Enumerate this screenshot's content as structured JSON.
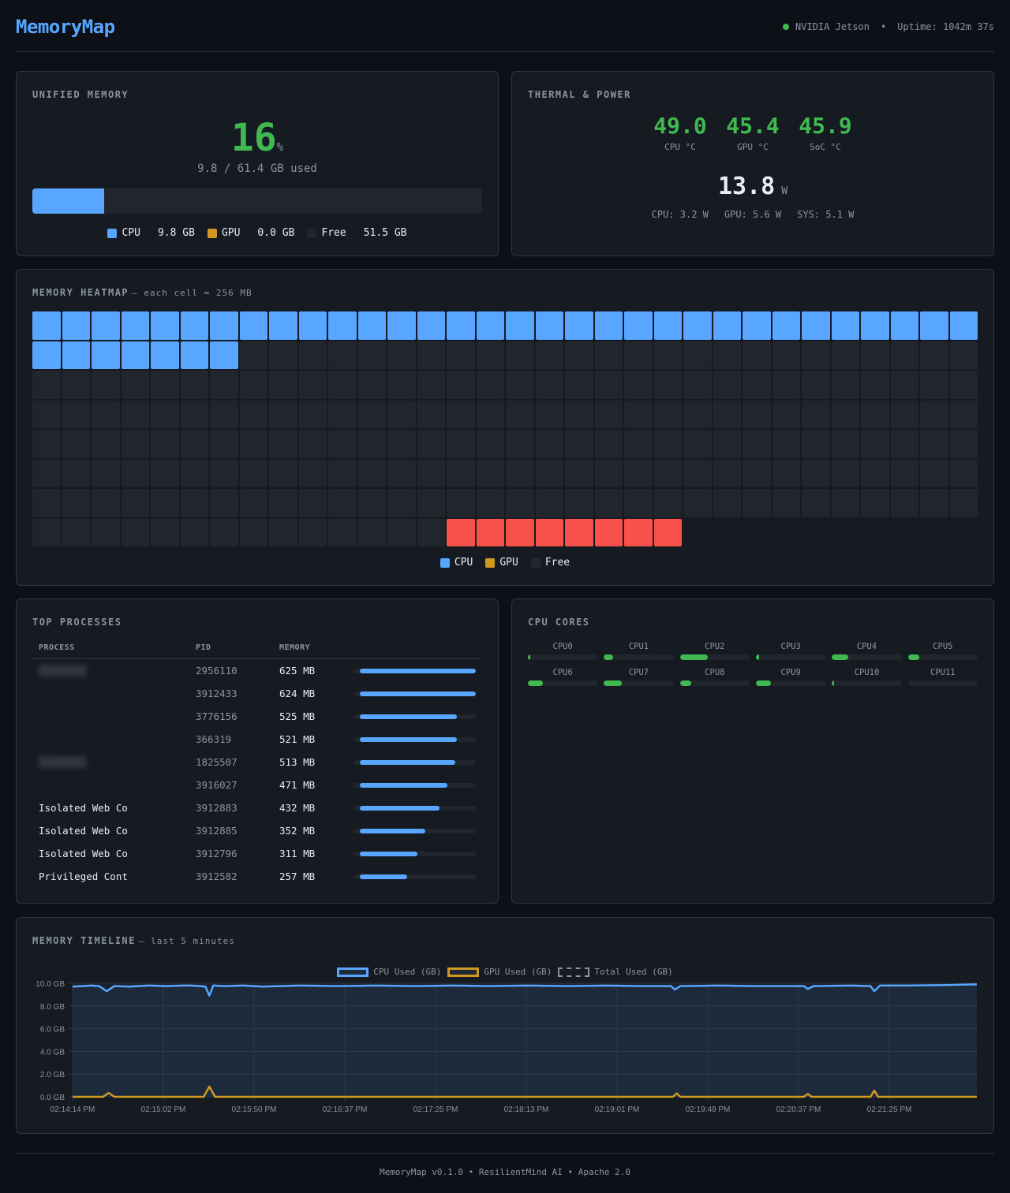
{
  "header": {
    "title": "MemoryMap",
    "device": "NVIDIA Jetson",
    "separator": "•",
    "uptime": "Uptime: 1042m 37s",
    "status_color": "#3fb950"
  },
  "colors": {
    "cpu": "#58a6ff",
    "gpu": "#d29922",
    "free": "#21262d",
    "reserved": "#f85149",
    "ok": "#3fb950"
  },
  "unified_memory": {
    "title": "UNIFIED MEMORY",
    "percent": "16",
    "percent_sign": "%",
    "used_text": "9.8 / 61.4 GB used",
    "bar_cpu_pct": 16,
    "legend": [
      {
        "label": "CPU",
        "value": "9.8 GB",
        "color": "#58a6ff"
      },
      {
        "label": "GPU",
        "value": "0.0 GB",
        "color": "#d29922"
      },
      {
        "label": "Free",
        "value": "51.5 GB",
        "color": "#21262d"
      }
    ]
  },
  "thermal": {
    "title": "THERMAL & POWER",
    "temps": [
      {
        "value": "49.0",
        "label": "CPU °C"
      },
      {
        "value": "45.4",
        "label": "GPU °C"
      },
      {
        "value": "45.9",
        "label": "SoC °C"
      }
    ],
    "power_total": "13.8",
    "power_unit": "W",
    "power_breakdown": [
      "CPU: 3.2 W",
      "GPU: 5.6 W",
      "SYS: 5.1 W"
    ]
  },
  "heatmap": {
    "title": "MEMORY HEATMAP",
    "subtitle": "— each cell = 256 MB",
    "columns": 32,
    "rows": [
      {
        "cpu": 32,
        "gpu": 0,
        "free": 0,
        "reserved": 0,
        "empty": 0
      },
      {
        "cpu": 7,
        "gpu": 0,
        "free": 25,
        "reserved": 0,
        "empty": 0
      },
      {
        "cpu": 0,
        "gpu": 0,
        "free": 32,
        "reserved": 0,
        "empty": 0
      },
      {
        "cpu": 0,
        "gpu": 0,
        "free": 32,
        "reserved": 0,
        "empty": 0
      },
      {
        "cpu": 0,
        "gpu": 0,
        "free": 32,
        "reserved": 0,
        "empty": 0
      },
      {
        "cpu": 0,
        "gpu": 0,
        "free": 32,
        "reserved": 0,
        "empty": 0
      },
      {
        "cpu": 0,
        "gpu": 0,
        "free": 32,
        "reserved": 0,
        "empty": 0
      },
      {
        "cpu": 0,
        "gpu": 0,
        "free": 14,
        "reserved": 8,
        "empty": 10
      }
    ],
    "legend": [
      {
        "label": "CPU",
        "color": "#58a6ff"
      },
      {
        "label": "GPU",
        "color": "#d29922"
      },
      {
        "label": "Free",
        "color": "#21262d"
      }
    ]
  },
  "processes": {
    "title": "TOP PROCESSES",
    "columns": [
      "PROCESS",
      "PID",
      "MEMORY",
      ""
    ],
    "rows": [
      {
        "name": "",
        "blurred": true,
        "pid": "2956110",
        "memory": "625 MB",
        "pct": 100
      },
      {
        "name": "",
        "blurred": false,
        "pid": "3912433",
        "memory": "624 MB",
        "pct": 99.8
      },
      {
        "name": "",
        "blurred": false,
        "pid": "3776156",
        "memory": "525 MB",
        "pct": 84
      },
      {
        "name": "",
        "blurred": false,
        "pid": "366319",
        "memory": "521 MB",
        "pct": 83.4
      },
      {
        "name": "",
        "blurred": true,
        "pid": "1825507",
        "memory": "513 MB",
        "pct": 82
      },
      {
        "name": "",
        "blurred": false,
        "pid": "3916027",
        "memory": "471 MB",
        "pct": 75.4
      },
      {
        "name": "Isolated Web Co",
        "blurred": false,
        "pid": "3912883",
        "memory": "432 MB",
        "pct": 69
      },
      {
        "name": "Isolated Web Co",
        "blurred": false,
        "pid": "3912885",
        "memory": "352 MB",
        "pct": 56.3
      },
      {
        "name": "Isolated Web Co",
        "blurred": false,
        "pid": "3912796",
        "memory": "311 MB",
        "pct": 49.8
      },
      {
        "name": "Privileged Cont",
        "blurred": false,
        "pid": "3912582",
        "memory": "257 MB",
        "pct": 41.1
      }
    ]
  },
  "cpu_cores": {
    "title": "CPU CORES",
    "cores": [
      {
        "label": "CPU0",
        "pct": 3
      },
      {
        "label": "CPU1",
        "pct": 13
      },
      {
        "label": "CPU2",
        "pct": 40
      },
      {
        "label": "CPU3",
        "pct": 4
      },
      {
        "label": "CPU4",
        "pct": 23
      },
      {
        "label": "CPU5",
        "pct": 16
      },
      {
        "label": "CPU6",
        "pct": 21
      },
      {
        "label": "CPU7",
        "pct": 26
      },
      {
        "label": "CPU8",
        "pct": 16
      },
      {
        "label": "CPU9",
        "pct": 21
      },
      {
        "label": "CPU10",
        "pct": 3
      },
      {
        "label": "CPU11",
        "pct": 0
      }
    ]
  },
  "timeline": {
    "title": "MEMORY TIMELINE",
    "subtitle": "— last 5 minutes"
  },
  "chart_data": {
    "type": "area",
    "title": "MEMORY TIMELINE — last 5 minutes",
    "xlabel": "",
    "ylabel": "",
    "ylim": [
      0,
      10
    ],
    "grid": true,
    "legend_position": "top",
    "y_ticks": [
      "0.0 GB",
      "2.0 GB",
      "4.0 GB",
      "6.0 GB",
      "8.0 GB",
      "10.0 GB"
    ],
    "x_ticks": [
      "02:14:14 PM",
      "02:15:02 PM",
      "02:15:50 PM",
      "02:16:37 PM",
      "02:17:25 PM",
      "02:18:13 PM",
      "02:19:01 PM",
      "02:19:49 PM",
      "02:20:37 PM",
      "02:21:25 PM"
    ],
    "series": [
      {
        "name": "CPU Used (GB)",
        "color": "#58a6ff",
        "fill": true,
        "points": [
          [
            0,
            9.7
          ],
          [
            5,
            9.75
          ],
          [
            10,
            9.8
          ],
          [
            14,
            9.75
          ],
          [
            18,
            9.3
          ],
          [
            22,
            9.75
          ],
          [
            30,
            9.7
          ],
          [
            40,
            9.8
          ],
          [
            50,
            9.75
          ],
          [
            58,
            9.8
          ],
          [
            62,
            9.8
          ],
          [
            67,
            9.75
          ],
          [
            70,
            9.7
          ],
          [
            72,
            8.9
          ],
          [
            74,
            9.8
          ],
          [
            80,
            9.75
          ],
          [
            90,
            9.8
          ],
          [
            100,
            9.7
          ],
          [
            120,
            9.8
          ],
          [
            140,
            9.75
          ],
          [
            160,
            9.8
          ],
          [
            180,
            9.75
          ],
          [
            200,
            9.8
          ],
          [
            220,
            9.75
          ],
          [
            240,
            9.8
          ],
          [
            260,
            9.75
          ],
          [
            280,
            9.8
          ],
          [
            300,
            9.75
          ],
          [
            315,
            9.75
          ],
          [
            317,
            9.45
          ],
          [
            320,
            9.75
          ],
          [
            340,
            9.8
          ],
          [
            360,
            9.75
          ],
          [
            385,
            9.75
          ],
          [
            387,
            9.5
          ],
          [
            390,
            9.75
          ],
          [
            410,
            9.8
          ],
          [
            420,
            9.75
          ],
          [
            422,
            9.3
          ],
          [
            425,
            9.8
          ],
          [
            440,
            9.8
          ],
          [
            460,
            9.85
          ],
          [
            476,
            9.9
          ]
        ]
      },
      {
        "name": "GPU Used (GB)",
        "color": "#d29922",
        "fill": false,
        "points": [
          [
            0,
            0
          ],
          [
            16,
            0
          ],
          [
            19,
            0.35
          ],
          [
            22,
            0
          ],
          [
            69,
            0
          ],
          [
            72,
            0.9
          ],
          [
            75,
            0
          ],
          [
            316,
            0
          ],
          [
            318,
            0.3
          ],
          [
            320,
            0
          ],
          [
            385,
            0
          ],
          [
            387,
            0.25
          ],
          [
            389,
            0
          ],
          [
            420,
            0
          ],
          [
            422,
            0.55
          ],
          [
            424,
            0
          ],
          [
            476,
            0
          ]
        ]
      },
      {
        "name": "Total Used (GB)",
        "color": "#8b949e",
        "dashed": true,
        "points": []
      }
    ]
  },
  "footer": {
    "text": "MemoryMap v0.1.0 • ResilientMind AI • Apache 2.0"
  }
}
